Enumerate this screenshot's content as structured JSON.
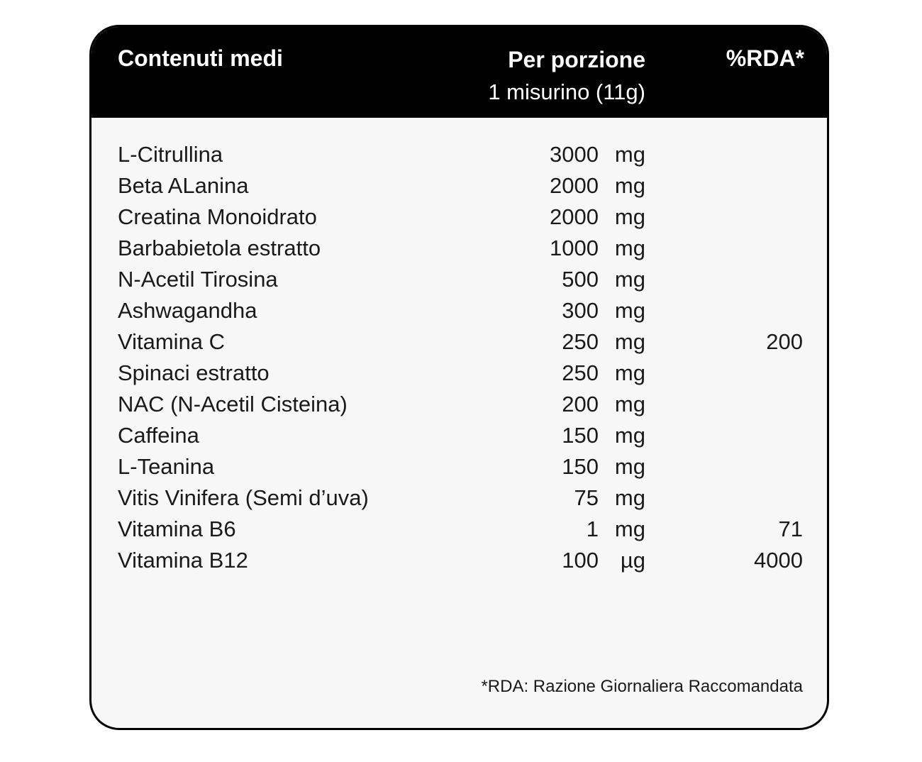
{
  "header": {
    "col_name": "Contenuti medi",
    "col_serving_title": "Per porzione",
    "col_serving_sub": "1 misurino (11g)",
    "col_rda": "%RDA*"
  },
  "rows": [
    {
      "name": "L-Citrullina",
      "amount": "3000",
      "unit": "mg",
      "rda": ""
    },
    {
      "name": "Beta ALanina",
      "amount": "2000",
      "unit": "mg",
      "rda": ""
    },
    {
      "name": "Creatina Monoidrato",
      "amount": "2000",
      "unit": "mg",
      "rda": ""
    },
    {
      "name": "Barbabietola estratto",
      "amount": "1000",
      "unit": "mg",
      "rda": ""
    },
    {
      "name": "N-Acetil Tirosina",
      "amount": "500",
      "unit": "mg",
      "rda": ""
    },
    {
      "name": "Ashwagandha",
      "amount": "300",
      "unit": "mg",
      "rda": ""
    },
    {
      "name": "Vitamina C",
      "amount": "250",
      "unit": "mg",
      "rda": "200"
    },
    {
      "name": "Spinaci estratto",
      "amount": "250",
      "unit": "mg",
      "rda": ""
    },
    {
      "name": "NAC (N-Acetil Cisteina)",
      "amount": "200",
      "unit": "mg",
      "rda": ""
    },
    {
      "name": "Caffeina",
      "amount": "150",
      "unit": "mg",
      "rda": ""
    },
    {
      "name": "L-Teanina",
      "amount": "150",
      "unit": "mg",
      "rda": ""
    },
    {
      "name": "Vitis Vinifera (Semi d’uva)",
      "amount": "75",
      "unit": "mg",
      "rda": ""
    },
    {
      "name": "Vitamina B6",
      "amount": "1",
      "unit": "mg",
      "rda": "71"
    },
    {
      "name": "Vitamina B12",
      "amount": "100",
      "unit": "µg",
      "rda": "4000"
    }
  ],
  "footnote": "*RDA: Razione Giornaliera Raccomandata",
  "colors": {
    "header_bg": "#000000",
    "header_text": "#ffffff",
    "panel_bg": "#f7f7f7",
    "border": "#000000",
    "text": "#1a1a1a"
  }
}
